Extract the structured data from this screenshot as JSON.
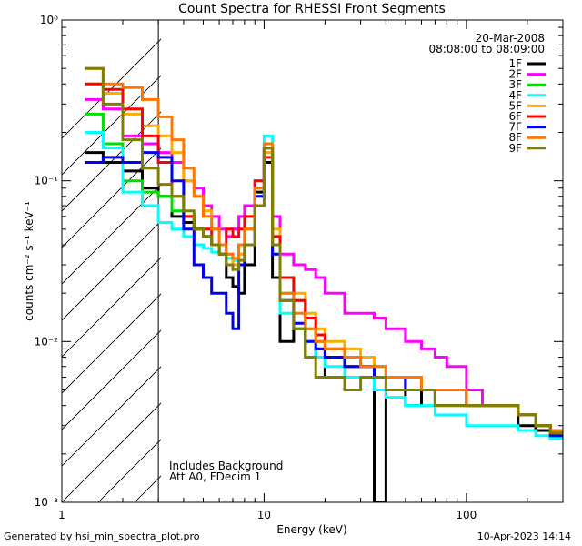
{
  "chart_data": {
    "type": "line",
    "title": "Count Spectra for RHESSI Front Segments",
    "xlabel": "Energy (keV)",
    "ylabel": "counts cm⁻² s⁻¹ keV⁻¹",
    "xscale": "log",
    "yscale": "log",
    "xlim": [
      1,
      300
    ],
    "ylim": [
      0.001,
      1
    ],
    "x_ticks": [
      {
        "value": 1,
        "label": "1"
      },
      {
        "value": 10,
        "label": "10"
      },
      {
        "value": 100,
        "label": "100"
      }
    ],
    "y_ticks": [
      {
        "value": 0.001,
        "label": "10⁻³"
      },
      {
        "value": 0.01,
        "label": "10⁻²"
      },
      {
        "value": 0.1,
        "label": "10⁻¹"
      },
      {
        "value": 1,
        "label": "10⁰"
      }
    ],
    "date": "20-Mar-2008",
    "time_range": "08:08:00 to 08:09:00",
    "annotations": [
      "Includes Background",
      "Att A0, FDecim 1"
    ],
    "hatched_region": [
      1,
      3
    ],
    "energy_edges": [
      1.3,
      1.6,
      2.0,
      2.5,
      3.0,
      3.5,
      4.0,
      4.5,
      5.0,
      5.5,
      6.0,
      6.5,
      7.0,
      7.5,
      8.0,
      9.0,
      10.0,
      11.0,
      12.0,
      14.0,
      16.0,
      18.0,
      20.0,
      25.0,
      30.0,
      35.0,
      40.0,
      50.0,
      60.0,
      70.0,
      80.0,
      100.0,
      120.0,
      150.0,
      180.0,
      220.0,
      260.0,
      300.0
    ],
    "series": [
      {
        "name": "1F",
        "color": "#000000",
        "values": [
          0.15,
          0.13,
          0.115,
          0.09,
          0.08,
          0.06,
          0.055,
          0.05,
          0.045,
          0.04,
          0.035,
          0.025,
          0.022,
          0.02,
          0.03,
          0.085,
          0.13,
          0.025,
          0.01,
          0.012,
          0.008,
          0.009,
          0.006,
          0.007,
          0.007,
          0.001,
          0.005,
          0.004,
          0.005,
          0.004,
          0.004,
          0.004,
          0.004,
          0.004,
          0.003,
          0.0028,
          0.0025
        ]
      },
      {
        "name": "2F",
        "color": "#ff00ff",
        "values": [
          0.32,
          0.28,
          0.19,
          0.17,
          0.15,
          0.13,
          0.1,
          0.09,
          0.07,
          0.06,
          0.05,
          0.045,
          0.05,
          0.06,
          0.07,
          0.1,
          0.16,
          0.06,
          0.035,
          0.03,
          0.028,
          0.025,
          0.02,
          0.015,
          0.015,
          0.014,
          0.012,
          0.01,
          0.009,
          0.008,
          0.007,
          0.005,
          0.004,
          0.004,
          0.0035,
          0.003,
          0.0028
        ]
      },
      {
        "name": "3F",
        "color": "#00dd00",
        "values": [
          0.26,
          0.17,
          0.1,
          0.085,
          0.08,
          0.065,
          0.06,
          0.05,
          0.045,
          0.04,
          0.035,
          0.03,
          0.032,
          0.04,
          0.05,
          0.09,
          0.15,
          0.045,
          0.02,
          0.018,
          0.012,
          0.01,
          0.009,
          0.008,
          0.007,
          0.007,
          0.006,
          0.006,
          0.005,
          0.005,
          0.005,
          0.004,
          0.004,
          0.004,
          0.0035,
          0.003,
          0.0027
        ]
      },
      {
        "name": "4F",
        "color": "#00ffff",
        "values": [
          0.2,
          0.16,
          0.085,
          0.07,
          0.055,
          0.05,
          0.045,
          0.04,
          0.038,
          0.036,
          0.035,
          0.033,
          0.032,
          0.035,
          0.04,
          0.08,
          0.19,
          0.04,
          0.015,
          0.012,
          0.01,
          0.008,
          0.007,
          0.006,
          0.006,
          0.005,
          0.0045,
          0.004,
          0.004,
          0.0035,
          0.0035,
          0.003,
          0.003,
          0.003,
          0.0028,
          0.0026,
          0.0025
        ]
      },
      {
        "name": "5F",
        "color": "#ffaa00",
        "values": [
          0.4,
          0.35,
          0.26,
          0.22,
          0.19,
          0.15,
          0.1,
          0.08,
          0.065,
          0.05,
          0.04,
          0.035,
          0.03,
          0.035,
          0.05,
          0.09,
          0.15,
          0.05,
          0.025,
          0.02,
          0.015,
          0.012,
          0.01,
          0.009,
          0.008,
          0.007,
          0.006,
          0.006,
          0.005,
          0.005,
          0.005,
          0.004,
          0.004,
          0.004,
          0.0035,
          0.003,
          0.0028
        ]
      },
      {
        "name": "6F",
        "color": "#ff0000",
        "values": [
          0.4,
          0.37,
          0.28,
          0.19,
          0.13,
          0.08,
          0.06,
          0.05,
          0.05,
          0.04,
          0.035,
          0.05,
          0.045,
          0.05,
          0.06,
          0.1,
          0.14,
          0.045,
          0.025,
          0.018,
          0.014,
          0.011,
          0.009,
          0.008,
          0.007,
          0.006,
          0.006,
          0.005,
          0.005,
          0.005,
          0.005,
          0.004,
          0.004,
          0.004,
          0.0035,
          0.003,
          0.0028
        ]
      },
      {
        "name": "7F",
        "color": "#0000ee",
        "values": [
          0.13,
          0.14,
          0.13,
          0.15,
          0.14,
          0.1,
          0.05,
          0.03,
          0.025,
          0.02,
          0.02,
          0.015,
          0.012,
          0.03,
          0.04,
          0.08,
          0.16,
          0.035,
          0.018,
          0.013,
          0.01,
          0.009,
          0.008,
          0.007,
          0.007,
          0.006,
          0.006,
          0.005,
          0.005,
          0.005,
          0.005,
          0.004,
          0.004,
          0.004,
          0.0035,
          0.003,
          0.0026
        ]
      },
      {
        "name": "8F",
        "color": "#ff7700",
        "values": [
          0.5,
          0.4,
          0.38,
          0.32,
          0.25,
          0.18,
          0.12,
          0.08,
          0.06,
          0.05,
          0.04,
          0.035,
          0.033,
          0.04,
          0.05,
          0.09,
          0.17,
          0.04,
          0.02,
          0.015,
          0.012,
          0.01,
          0.009,
          0.008,
          0.007,
          0.007,
          0.006,
          0.006,
          0.005,
          0.005,
          0.005,
          0.004,
          0.004,
          0.004,
          0.0035,
          0.003,
          0.0028
        ]
      },
      {
        "name": "9F",
        "color": "#808000",
        "values": [
          0.5,
          0.3,
          0.18,
          0.12,
          0.095,
          0.08,
          0.065,
          0.05,
          0.045,
          0.04,
          0.035,
          0.03,
          0.028,
          0.032,
          0.04,
          0.07,
          0.16,
          0.04,
          0.018,
          0.012,
          0.008,
          0.006,
          0.006,
          0.005,
          0.006,
          0.006,
          0.005,
          0.005,
          0.005,
          0.004,
          0.004,
          0.004,
          0.004,
          0.004,
          0.0035,
          0.003,
          0.0027
        ]
      }
    ]
  },
  "footer": {
    "left": "Generated by hsi_min_spectra_plot.pro",
    "right": "10-Apr-2023 14:14"
  }
}
